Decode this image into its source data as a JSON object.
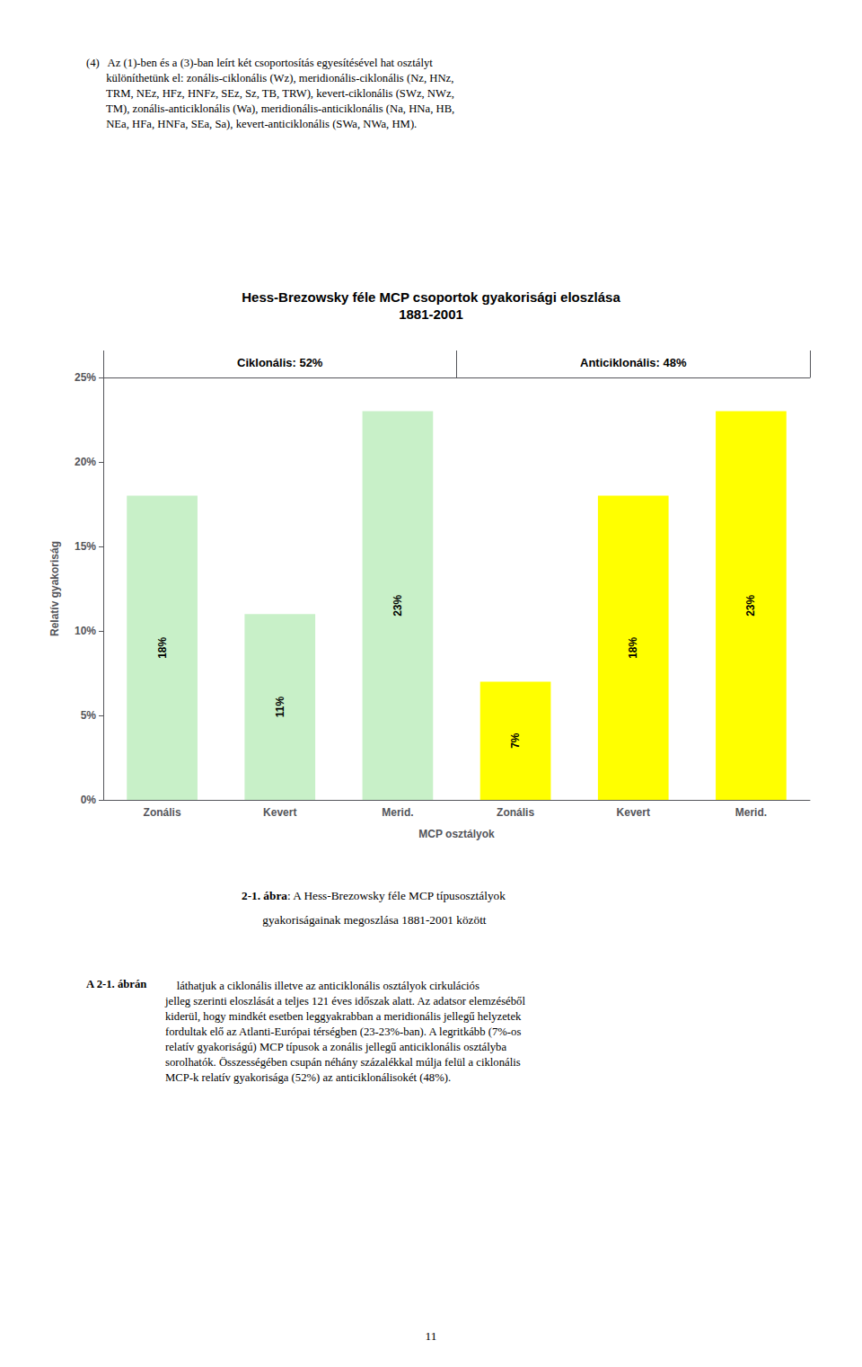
{
  "chart_data": {
    "type": "bar",
    "title": "Hess-Brezowsky féle MCP csoportok gyakorisági eloszlása",
    "subtitle": "1881-2001",
    "categories": [
      "Zonális",
      "Kevert",
      "Merid.",
      "Zonális",
      "Kevert",
      "Merid."
    ],
    "values": [
      18,
      11,
      23,
      7,
      18,
      23
    ],
    "value_labels": [
      "18%",
      "11%",
      "23%",
      "7%",
      "18%",
      "23%"
    ],
    "data_labels": true,
    "colors": [
      "#c8f0c8",
      "#c8f0c8",
      "#c8f0c8",
      "#ffff00",
      "#ffff00",
      "#ffff00"
    ],
    "xlabel": "MCP osztályok",
    "ylabel": "Relatív gyakoriság",
    "ylim": [
      0,
      25
    ],
    "yticks": [
      {
        "value": 0,
        "label": "0%"
      },
      {
        "value": 5,
        "label": "5%"
      },
      {
        "value": 10,
        "label": "10%"
      },
      {
        "value": 15,
        "label": "15%"
      },
      {
        "value": 20,
        "label": "20%"
      },
      {
        "value": 25,
        "label": "25%"
      }
    ],
    "grid": false,
    "annotations": [
      "Ciklonális: 52%",
      "Anticiklonális: 48%",
      "(4)   Az (1)-ben és a (3)-ban leírt két csoportosítás egyesítésével hat osztályt\n       különíthetünk el: zonális-ciklonális (Wz), meridionális-ciklonális (Nz, HNz,\n       TRM, NEz, HFz, HNFz, SEz, Sz, TB, TRW), kevert-ciklonális (SWz, NWz,\n       TM), zonális-anticiklonális (Wa), meridionális-anticiklonális (Na, HNa, HB,\n       NEa, HFa, HNFa, SEa, Sa), kevert-anticiklonális (SWa, NWa, HM).",
      "2-1. ábra",
      ": A Hess-Brezowsky féle MCP típusosztályok",
      "       gyakoriságainak megoszlása 1881-2001 között",
      "A 2-1. ábrán",
      "    láthatjuk a ciklonális illetve az anticiklonális osztályok cirkulációs\njelleg szerinti eloszlását a teljes 121 éves időszak alatt. Az adatsor elemzéséből\nkiderül, hogy mindkét esetben leggyakrabban a meridionális jellegű helyzetek\nfordultak elő az Atlanti-Európai térségben (23-23%-ban). A legritkább (7%-os\nrelatív gyakoriságú) MCP típusok a zonális jellegű anticiklonális osztályba\nsorolhatók. Összességében csupán néhány százalékkal múlja felül a ciklonális\nMCP-k relatív gyakorisága (52%) az anticiklonálisokét (48%).",
      "11"
    ]
  }
}
